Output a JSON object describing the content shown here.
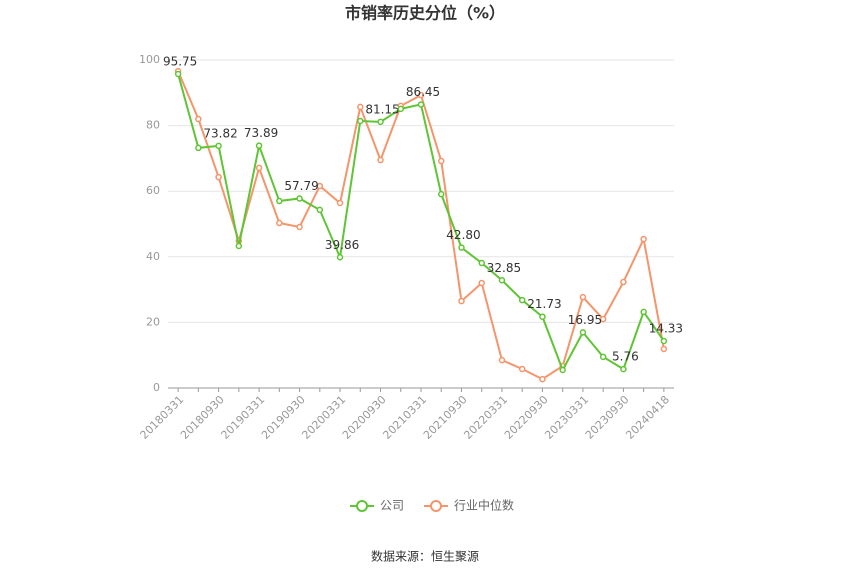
{
  "chart_data": {
    "type": "line",
    "title": "市销率历史分位（%）",
    "source": "数据来源：恒生聚源",
    "categories": [
      "20180331",
      null,
      "20180930",
      null,
      "20190331",
      null,
      "20190930",
      null,
      "20200331",
      null,
      "20200930",
      null,
      "20210331",
      null,
      "20210930",
      null,
      "20220331",
      null,
      "20220930",
      null,
      "20230331",
      null,
      "20230930",
      null,
      "20240418"
    ],
    "series": [
      {
        "name": "公司",
        "color": "#5fc534",
        "values": [
          95.75,
          73.2,
          73.82,
          43.3,
          73.89,
          57.0,
          57.79,
          54.3,
          39.86,
          81.4,
          81.15,
          85.1,
          86.45,
          59.1,
          42.8,
          38.1,
          32.85,
          26.8,
          21.73,
          5.5,
          16.95,
          9.5,
          5.76,
          23.2,
          14.33
        ],
        "value_labels": [
          "95.75",
          null,
          "73.82",
          null,
          "73.89",
          null,
          "57.79",
          null,
          "39.86",
          null,
          "81.15",
          null,
          "86.45",
          null,
          "42.80",
          null,
          "32.85",
          null,
          "21.73",
          null,
          "16.95",
          null,
          "5.76",
          null,
          "14.33"
        ]
      },
      {
        "name": "行业中位数",
        "color": "#f4956b",
        "values": [
          96.6,
          82.0,
          64.3,
          44.8,
          67.1,
          50.3,
          49.1,
          61.6,
          56.4,
          85.7,
          69.5,
          86.0,
          89.3,
          69.2,
          26.5,
          32.0,
          8.5,
          5.8,
          2.7,
          6.7,
          27.7,
          21.0,
          32.3,
          45.4,
          11.9
        ]
      }
    ],
    "ylim": [
      0,
      100
    ],
    "yticks": [
      0,
      20,
      40,
      60,
      80,
      100
    ],
    "grid": true,
    "legend": "bottom"
  }
}
